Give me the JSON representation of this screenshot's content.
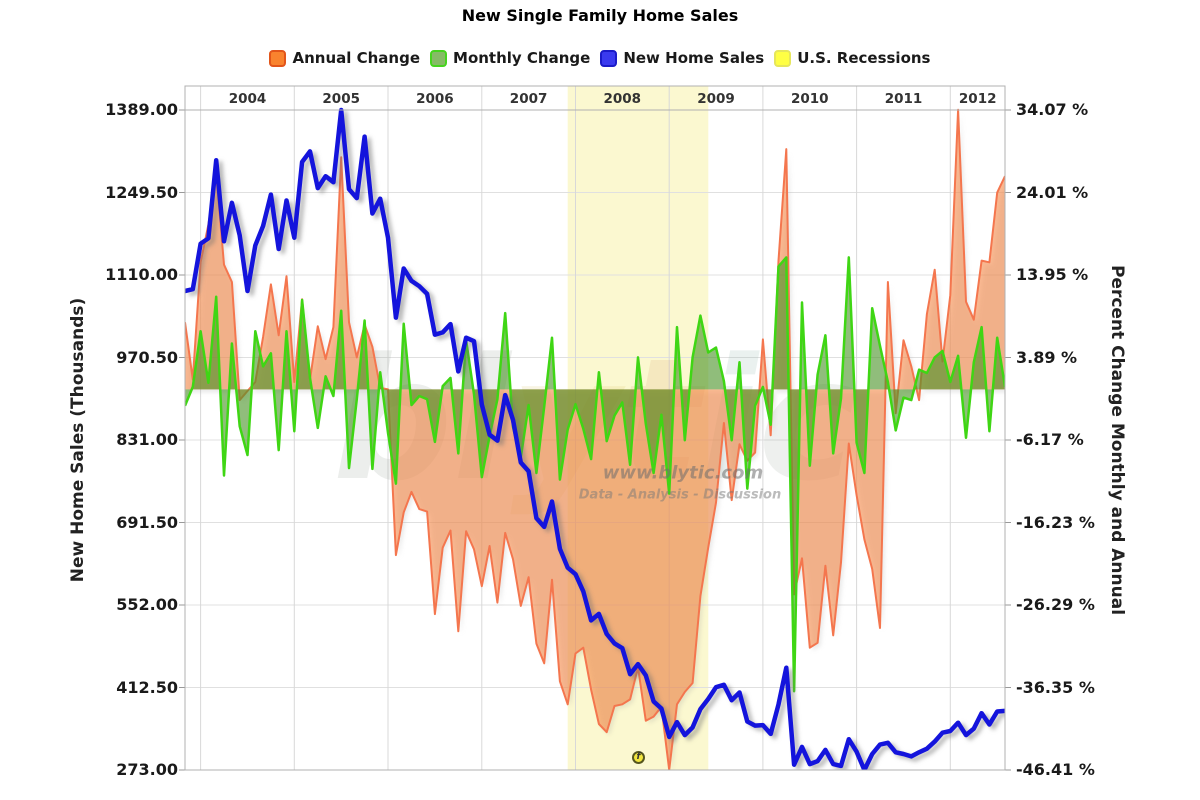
{
  "title": "New Single Family Home Sales",
  "legend": {
    "items": [
      {
        "label": "Annual Change",
        "fill": "#F9832E",
        "border": "#E2551A"
      },
      {
        "label": "Monthly Change",
        "fill": "#86BB66",
        "border": "#46D41E"
      },
      {
        "label": "New Home Sales",
        "fill": "#3A3AEF",
        "border": "#1B1BC8"
      },
      {
        "label": "U.S. Recessions",
        "fill": "#FFFF44",
        "border": "#E6E65C"
      }
    ]
  },
  "watermark": {
    "logo": "blytic",
    "url": "www.blytic.com",
    "tagline": "Data - Analysis - Discussion"
  },
  "annotation": {
    "glyph": "f",
    "month": "2008-09"
  },
  "chart_data": {
    "type": "line",
    "title": "New Single Family Home Sales",
    "x_months": {
      "start": "2003-11",
      "end": "2012-08",
      "count": 106
    },
    "year_ticks": [
      "2004",
      "2005",
      "2006",
      "2007",
      "2008",
      "2009",
      "2010",
      "2011",
      "2012"
    ],
    "recession": {
      "label": "U.S. Recessions",
      "start": "2007-12",
      "end": "2009-06",
      "fill": "#FAF7C8"
    },
    "left_axis": {
      "title": "New Home Sales (Thousands)",
      "min": 273,
      "max": 1389,
      "ticks": [
        "1389.00",
        "1249.50",
        "1110.00",
        "970.50",
        "831.00",
        "691.50",
        "552.00",
        "412.50",
        "273.00"
      ]
    },
    "right_axis": {
      "title": "Percent Change Monthly and Annual",
      "min": -46.41,
      "max": 34.07,
      "ticks": [
        "34.07 %",
        "24.01 %",
        "13.95 %",
        "3.89 %",
        "-6.17 %",
        "-16.23 %",
        "-26.29 %",
        "-36.35 %",
        "-46.41 %"
      ]
    },
    "grid": true,
    "series": [
      {
        "name": "Annual Change",
        "type": "area",
        "axis": "right",
        "stroke": "#F4764E",
        "fill": "rgba(247,138,74,0.6)",
        "values": [
          8.2,
          1.2,
          15.5,
          20.1,
          26.4,
          15.2,
          13.1,
          -1.3,
          -0.2,
          0.9,
          6.4,
          12.8,
          6.6,
          13.8,
          0.9,
          11.0,
          1.2,
          7.7,
          3.7,
          7.6,
          28.3,
          8.2,
          3.9,
          7.9,
          5.2,
          0.2,
          0.0,
          -20.2,
          -15.0,
          -12.5,
          -14.6,
          -14.9,
          -27.4,
          -19.3,
          -17.2,
          -29.5,
          -17.3,
          -19.5,
          -24.0,
          -19.1,
          -26.0,
          -17.5,
          -20.7,
          -26.4,
          -22.9,
          -31.0,
          -33.4,
          -23.2,
          -35.6,
          -38.4,
          -32.2,
          -31.5,
          -36.6,
          -40.8,
          -41.8,
          -38.6,
          -38.4,
          -37.8,
          -33.9,
          -40.4,
          -39.9,
          -38.7,
          -46.4,
          -38.4,
          -36.9,
          -35.8,
          -25.2,
          -19.3,
          -13.8,
          -4.1,
          -13.5,
          -6.7,
          -8.7,
          -7.7,
          6.1,
          -5.6,
          15.7,
          29.3,
          -25.0,
          -20.6,
          -31.5,
          -30.9,
          -21.5,
          -30.0,
          -21.1,
          -6.6,
          -12.9,
          -18.3,
          -21.9,
          -29.1,
          13.1,
          -2.9,
          6.0,
          2.8,
          -1.3,
          9.2,
          14.6,
          3.4,
          11.5,
          34.1,
          10.7,
          8.5,
          15.7,
          15.5,
          24.0,
          26.0
        ]
      },
      {
        "name": "Monthly Change",
        "type": "area",
        "axis": "right",
        "stroke": "#3FD614",
        "fill": "rgba(70,145,35,0.6)",
        "values": [
          -2.0,
          0.3,
          7.1,
          0.8,
          11.3,
          -10.5,
          5.6,
          -4.5,
          -8.0,
          7.1,
          2.8,
          4.4,
          -7.4,
          7.1,
          -5.1,
          10.9,
          1.4,
          -4.7,
          1.6,
          -0.8,
          9.6,
          -9.6,
          -1.2,
          8.4,
          -9.7,
          2.1,
          -5.3,
          -11.5,
          8.0,
          -1.9,
          -0.8,
          -1.2,
          -6.4,
          0.4,
          1.4,
          -7.8,
          6.0,
          -0.6,
          -10.7,
          -5.7,
          -1.2,
          9.3,
          -4.6,
          -8.3,
          -1.9,
          -10.2,
          -2.1,
          6.3,
          -11.0,
          -4.9,
          -1.8,
          -4.8,
          -8.5,
          2.1,
          -6.3,
          -3.2,
          -1.6,
          -9.2,
          3.9,
          -4.2,
          -10.2,
          -3.1,
          -12.7,
          7.6,
          -6.2,
          3.9,
          9.0,
          4.5,
          5.1,
          1.0,
          -6.2,
          3.3,
          -12.1,
          -2.0,
          0.3,
          -4.3,
          15.0,
          16.1,
          -36.8,
          10.6,
          -9.3,
          1.8,
          6.6,
          -7.8,
          -1.1,
          16.1,
          -6.5,
          -10.2,
          9.9,
          5.3,
          0.9,
          -5.0,
          -1.0,
          -1.3,
          2.4,
          2.0,
          3.9,
          4.7,
          0.9,
          4.1,
          -5.9,
          3.3,
          7.6,
          -5.1,
          6.3,
          0.3
        ]
      },
      {
        "name": "New Home Sales",
        "type": "line",
        "axis": "left",
        "stroke": "#1414DC",
        "values": [
          1083,
          1086,
          1163,
          1172,
          1304,
          1167,
          1232,
          1177,
          1083,
          1160,
          1193,
          1246,
          1154,
          1236,
          1173,
          1301,
          1319,
          1257,
          1277,
          1267,
          1389,
          1255,
          1240,
          1344,
          1214,
          1239,
          1173,
          1038,
          1121,
          1100,
          1091,
          1078,
          1009,
          1013,
          1027,
          947,
          1004,
          998,
          891,
          840,
          830,
          907,
          865,
          793,
          778,
          699,
          684,
          727,
          647,
          615,
          604,
          575,
          526,
          537,
          503,
          487,
          479,
          435,
          452,
          433,
          389,
          377,
          329,
          354,
          332,
          345,
          376,
          393,
          413,
          417,
          391,
          404,
          355,
          348,
          349,
          334,
          384,
          446,
          282,
          312,
          283,
          288,
          307,
          283,
          280,
          325,
          304,
          273,
          300,
          316,
          319,
          303,
          300,
          296,
          303,
          309,
          321,
          336,
          339,
          353,
          332,
          343,
          369,
          350,
          372,
          373
        ]
      }
    ]
  }
}
